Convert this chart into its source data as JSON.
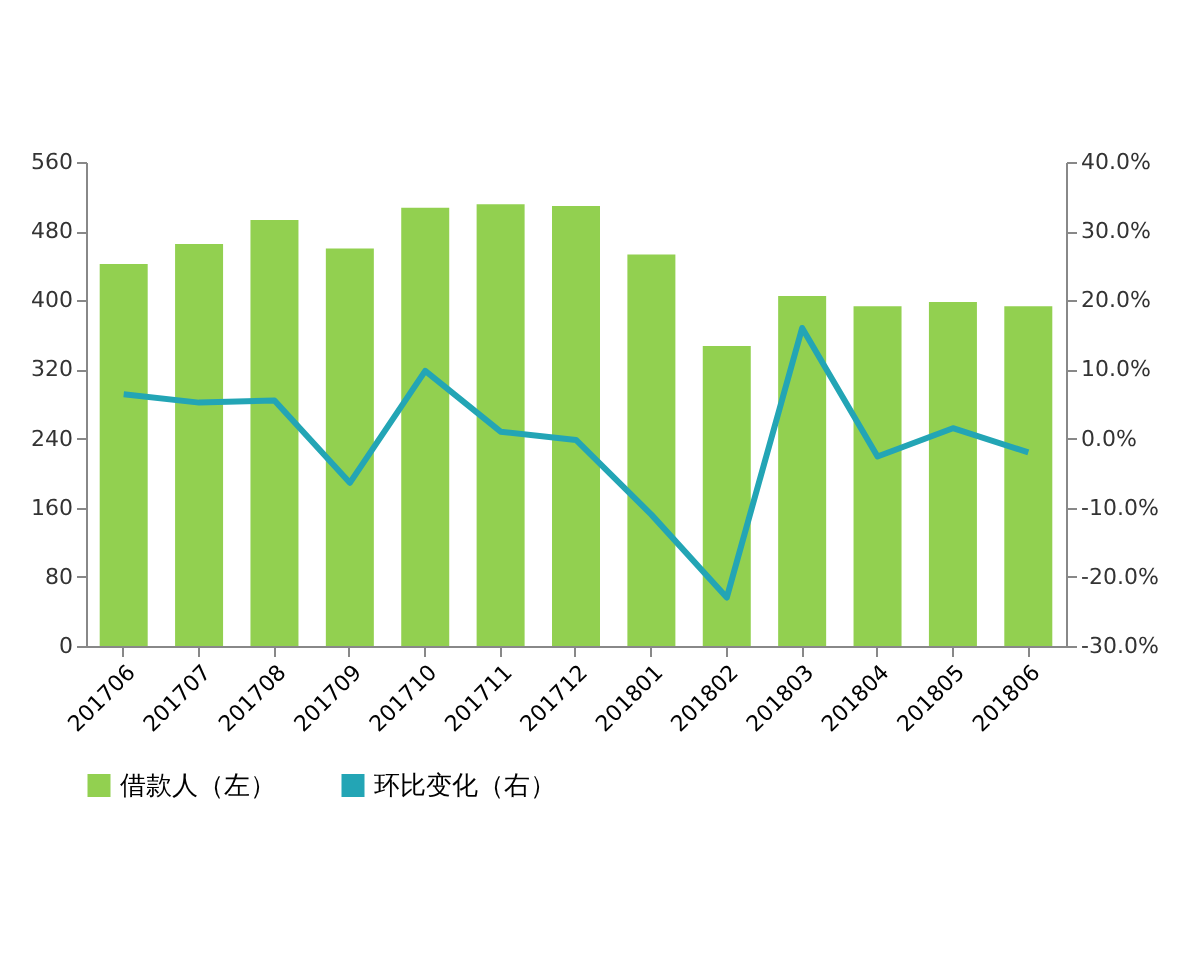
{
  "chart_data": {
    "type": "bar",
    "categories": [
      "201706",
      "201707",
      "201708",
      "201709",
      "201710",
      "201711",
      "201712",
      "201801",
      "201802",
      "201803",
      "201804",
      "201805",
      "201806"
    ],
    "series": [
      {
        "name": "借款人（左）",
        "color": "#92d050",
        "values": [
          442,
          465,
          493,
          460,
          507,
          511,
          509,
          453,
          347,
          405,
          393,
          398,
          393
        ]
      },
      {
        "name": "环比变化（右）",
        "type": "line",
        "axis": "y2",
        "color": "#23a5b5",
        "values": [
          6.4,
          5.2,
          5.5,
          -6.4,
          9.8,
          1.0,
          -0.2,
          -11,
          -23,
          16,
          -2.6,
          1.5,
          -2
        ]
      }
    ],
    "ylim": [
      0,
      560
    ],
    "yticks": [
      0,
      80,
      160,
      240,
      320,
      400,
      480,
      560
    ],
    "y2lim": [
      -30,
      40
    ],
    "y2ticks": [
      {
        "value": -30,
        "label": "-30.0%"
      },
      {
        "value": -20,
        "label": "-20.0%"
      },
      {
        "value": -10,
        "label": "-10.0%"
      },
      {
        "value": 0,
        "label": "0.0%"
      },
      {
        "value": 10,
        "label": "10.0%"
      },
      {
        "value": 20,
        "label": "20.0%"
      },
      {
        "value": 30,
        "label": "30.0%"
      },
      {
        "value": 40,
        "label": "40.0%"
      }
    ],
    "legend": "bottom",
    "grid": false
  }
}
